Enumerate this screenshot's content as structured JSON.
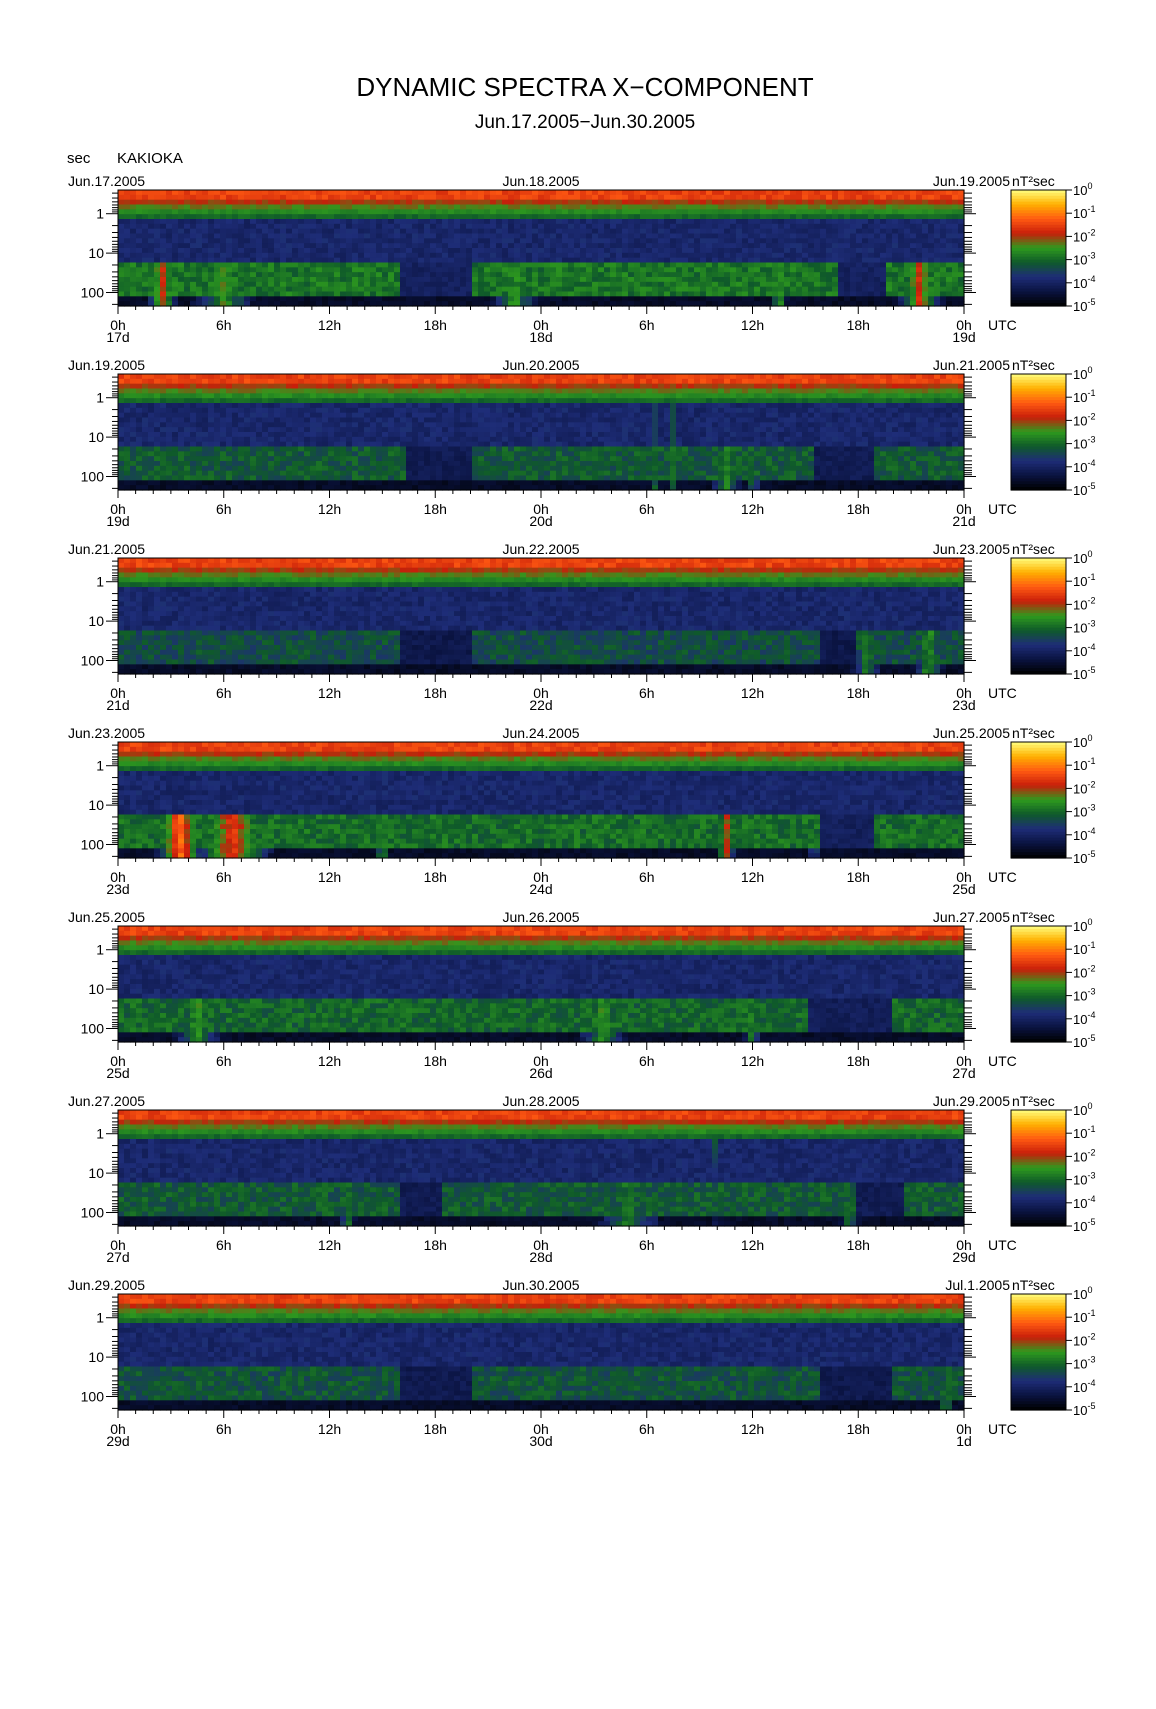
{
  "page": {
    "title": "DYNAMIC SPECTRA X−COMPONENT",
    "subtitle": "Jun.17.2005−Jun.30.2005",
    "y_unit": "sec",
    "station": "KAKIOKA",
    "utc_label": "UTC",
    "colorbar_unit": "nT²sec"
  },
  "colors": {
    "scale": [
      "#000000",
      "#0a1340",
      "#1e2d78",
      "#0f5a2a",
      "#2e9a1e",
      "#c81e0a",
      "#ff5a12",
      "#ffb000",
      "#ffff80"
    ]
  },
  "chart_data": [
    {
      "type": "heatmap",
      "date_left": "Jun.17.2005",
      "date_mid": "Jun.18.2005",
      "date_right": "Jun.19.2005",
      "x_ticks": [
        "0h",
        "6h",
        "12h",
        "18h",
        "0h",
        "6h",
        "12h",
        "18h",
        "0h"
      ],
      "day_labels": [
        "17d",
        "18d",
        "19d"
      ],
      "y_ticks": [
        "1",
        "10",
        "100"
      ],
      "y_axis": {
        "scale": "log",
        "unit": "sec",
        "reversed": true
      },
      "colorbar_ticks": [
        "0",
        "-1",
        "-2",
        "-3",
        "-4",
        "-5"
      ],
      "colorbar_range": [
        -5,
        0
      ],
      "band_level": 0.55,
      "features": [
        {
          "t": 2.5,
          "w": 1.0,
          "strength": 0.6
        },
        {
          "t": 6.0,
          "w": 2.0,
          "strength": 0.45
        },
        {
          "t": 22.5,
          "w": 1.5,
          "strength": 0.45
        },
        {
          "t": 37.5,
          "w": 0.5,
          "strength": 0.5
        },
        {
          "t": 45.5,
          "w": 1.5,
          "strength": 0.6
        }
      ],
      "quiet": [
        {
          "start": 41,
          "end": 43.5
        },
        {
          "start": 16,
          "end": 20
        }
      ]
    },
    {
      "type": "heatmap",
      "date_left": "Jun.19.2005",
      "date_mid": "Jun.20.2005",
      "date_right": "Jun.21.2005",
      "x_ticks": [
        "0h",
        "6h",
        "12h",
        "18h",
        "0h",
        "6h",
        "12h",
        "18h",
        "0h"
      ],
      "day_labels": [
        "19d",
        "20d",
        "21d"
      ],
      "y_ticks": [
        "1",
        "10",
        "100"
      ],
      "y_axis": {
        "scale": "log",
        "unit": "sec",
        "reversed": true
      },
      "colorbar_ticks": [
        "0",
        "-1",
        "-2",
        "-3",
        "-4",
        "-5"
      ],
      "colorbar_range": [
        -5,
        0
      ],
      "band_level": 0.35,
      "features": [
        {
          "t": 16.0,
          "w": 0.1,
          "strength": 0.7,
          "full": true
        },
        {
          "t": 30.5,
          "w": 0.2,
          "strength": 0.35,
          "full": true
        },
        {
          "t": 31.5,
          "w": 0.2,
          "strength": 0.35,
          "full": true
        },
        {
          "t": 34.5,
          "w": 1.0,
          "strength": 0.4
        },
        {
          "t": 36.0,
          "w": 0.5,
          "strength": 0.35
        }
      ],
      "quiet": [
        {
          "start": 16.5,
          "end": 20
        },
        {
          "start": 39.5,
          "end": 43
        }
      ]
    },
    {
      "type": "heatmap",
      "date_left": "Jun.21.2005",
      "date_mid": "Jun.22.2005",
      "date_right": "Jun.23.2005",
      "x_ticks": [
        "0h",
        "6h",
        "12h",
        "18h",
        "0h",
        "6h",
        "12h",
        "18h",
        "0h"
      ],
      "day_labels": [
        "21d",
        "22d",
        "23d"
      ],
      "y_ticks": [
        "1",
        "10",
        "100"
      ],
      "y_axis": {
        "scale": "log",
        "unit": "sec",
        "reversed": true
      },
      "colorbar_ticks": [
        "0",
        "-1",
        "-2",
        "-3",
        "-4",
        "-5"
      ],
      "colorbar_range": [
        -5,
        0
      ],
      "band_level": 0.25,
      "features": [
        {
          "t": 42.5,
          "w": 1.0,
          "strength": 0.4
        },
        {
          "t": 46.0,
          "w": 1.0,
          "strength": 0.45
        }
      ],
      "quiet": [
        {
          "start": 16,
          "end": 20
        },
        {
          "start": 40,
          "end": 42
        }
      ]
    },
    {
      "type": "heatmap",
      "date_left": "Jun.23.2005",
      "date_mid": "Jun.24.2005",
      "date_right": "Jun.25.2005",
      "x_ticks": [
        "0h",
        "6h",
        "12h",
        "18h",
        "0h",
        "6h",
        "12h",
        "18h",
        "0h"
      ],
      "day_labels": [
        "23d",
        "24d",
        "25d"
      ],
      "y_ticks": [
        "1",
        "10",
        "100"
      ],
      "y_axis": {
        "scale": "log",
        "unit": "sec",
        "reversed": true
      },
      "colorbar_ticks": [
        "0",
        "-1",
        "-2",
        "-3",
        "-4",
        "-5"
      ],
      "colorbar_range": [
        -5,
        0
      ],
      "band_level": 0.5,
      "features": [
        {
          "t": 3.5,
          "w": 1.5,
          "strength": 0.75
        },
        {
          "t": 6.5,
          "w": 2.5,
          "strength": 0.65
        },
        {
          "t": 15.0,
          "w": 0.5,
          "strength": 0.45
        },
        {
          "t": 34.5,
          "w": 0.6,
          "strength": 0.6
        },
        {
          "t": 39.5,
          "w": 0.3,
          "strength": 0.4
        }
      ],
      "quiet": [
        {
          "start": 40,
          "end": 43
        }
      ]
    },
    {
      "type": "heatmap",
      "date_left": "Jun.25.2005",
      "date_mid": "Jun.26.2005",
      "date_right": "Jun.27.2005",
      "x_ticks": [
        "0h",
        "6h",
        "12h",
        "18h",
        "0h",
        "6h",
        "12h",
        "18h",
        "0h"
      ],
      "day_labels": [
        "25d",
        "26d",
        "27d"
      ],
      "y_ticks": [
        "1",
        "10",
        "100"
      ],
      "y_axis": {
        "scale": "log",
        "unit": "sec",
        "reversed": true
      },
      "colorbar_ticks": [
        "0",
        "-1",
        "-2",
        "-3",
        "-4",
        "-5"
      ],
      "colorbar_range": [
        -5,
        0
      ],
      "band_level": 0.45,
      "features": [
        {
          "t": 4.5,
          "w": 1.5,
          "strength": 0.45
        },
        {
          "t": 27.5,
          "w": 1.5,
          "strength": 0.45
        },
        {
          "t": 36.0,
          "w": 0.5,
          "strength": 0.45
        }
      ],
      "quiet": [
        {
          "start": 39,
          "end": 44
        }
      ]
    },
    {
      "type": "heatmap",
      "date_left": "Jun.27.2005",
      "date_mid": "Jun.28.2005",
      "date_right": "Jun.29.2005",
      "x_ticks": [
        "0h",
        "6h",
        "12h",
        "18h",
        "0h",
        "6h",
        "12h",
        "18h",
        "0h"
      ],
      "day_labels": [
        "27d",
        "28d",
        "29d"
      ],
      "y_ticks": [
        "1",
        "10",
        "100"
      ],
      "y_axis": {
        "scale": "log",
        "unit": "sec",
        "reversed": true
      },
      "colorbar_ticks": [
        "0",
        "-1",
        "-2",
        "-3",
        "-4",
        "-5"
      ],
      "colorbar_range": [
        -5,
        0
      ],
      "band_level": 0.35,
      "features": [
        {
          "t": 34.0,
          "w": 0.25,
          "strength": 0.95,
          "full": true,
          "top": true
        },
        {
          "t": 29.0,
          "w": 2.0,
          "strength": 0.4
        },
        {
          "t": 13.0,
          "w": 0.5,
          "strength": 0.4
        },
        {
          "t": 41.5,
          "w": 0.6,
          "strength": 0.4
        }
      ],
      "quiet": [
        {
          "start": 16,
          "end": 18.5
        },
        {
          "start": 42,
          "end": 44.5
        }
      ]
    },
    {
      "type": "heatmap",
      "date_left": "Jun.29.2005",
      "date_mid": "Jun.30.2005",
      "date_right": "Jul.1.2005",
      "x_ticks": [
        "0h",
        "6h",
        "12h",
        "18h",
        "0h",
        "6h",
        "12h",
        "18h",
        "0h"
      ],
      "day_labels": [
        "29d",
        "30d",
        "1d"
      ],
      "y_ticks": [
        "1",
        "10",
        "100"
      ],
      "y_axis": {
        "scale": "log",
        "unit": "sec",
        "reversed": true
      },
      "colorbar_ticks": [
        "0",
        "-1",
        "-2",
        "-3",
        "-4",
        "-5"
      ],
      "colorbar_range": [
        -5,
        0
      ],
      "band_level": 0.3,
      "features": [
        {
          "t": 47.0,
          "w": 0.5,
          "strength": 0.45
        }
      ],
      "quiet": [
        {
          "start": 16,
          "end": 20
        },
        {
          "start": 40,
          "end": 44
        }
      ]
    }
  ]
}
